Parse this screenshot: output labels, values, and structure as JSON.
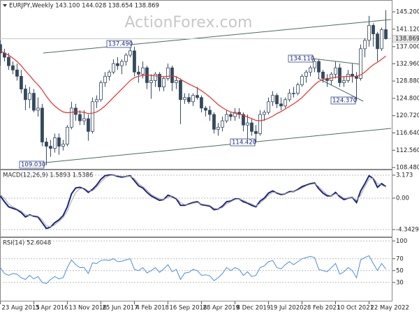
{
  "chart_data": [
    {
      "type": "candlestick",
      "title": "EURJPY,Weekly  143.100 144.028 138.654 138.869",
      "watermark": "ActionForex.com",
      "x": [
        "2015-08-23",
        "2015-09-20",
        "2015-10-18",
        "2015-11-15",
        "2015-12-13",
        "2016-01-10",
        "2016-02-07",
        "2016-03-06",
        "2016-04-03",
        "2016-05-01",
        "2016-05-29",
        "2016-06-26",
        "2016-07-24",
        "2016-08-21",
        "2016-09-18",
        "2016-10-16",
        "2016-11-13",
        "2016-12-11",
        "2017-01-08",
        "2017-02-05",
        "2017-03-05",
        "2017-04-02",
        "2017-04-30",
        "2017-05-28",
        "2017-06-25",
        "2017-07-23",
        "2017-08-20",
        "2017-09-17",
        "2017-10-15",
        "2017-11-12",
        "2017-12-10",
        "2018-01-07",
        "2018-02-04",
        "2018-03-04",
        "2018-04-01",
        "2018-04-29",
        "2018-05-27",
        "2018-06-24",
        "2018-07-22",
        "2018-08-19",
        "2018-09-16",
        "2018-10-14",
        "2018-11-11",
        "2018-12-09",
        "2019-01-06",
        "2019-02-03",
        "2019-03-03",
        "2019-03-31",
        "2019-04-28",
        "2019-05-26",
        "2019-06-23",
        "2019-07-21",
        "2019-08-18",
        "2019-09-15",
        "2019-10-13",
        "2019-11-10",
        "2019-12-08",
        "2020-01-05",
        "2020-02-02",
        "2020-03-01",
        "2020-03-29",
        "2020-04-26",
        "2020-05-24",
        "2020-06-21",
        "2020-07-19",
        "2020-08-16",
        "2020-09-13",
        "2020-10-11",
        "2020-11-08",
        "2020-12-06",
        "2021-01-03",
        "2021-01-31",
        "2021-02-28",
        "2021-03-28",
        "2021-04-25",
        "2021-05-23",
        "2021-06-20",
        "2021-07-18",
        "2021-08-15",
        "2021-09-12",
        "2021-10-10",
        "2021-11-07",
        "2021-12-05",
        "2022-01-02",
        "2022-01-30",
        "2022-02-27",
        "2022-03-27",
        "2022-04-24",
        "2022-05-22",
        "2022-06-19",
        "2022-07-17",
        "2022-08-14",
        "2022-09-11"
      ],
      "open": [
        137.5,
        135.5,
        134.5,
        132.5,
        131.5,
        130.0,
        127.0,
        124.5,
        126.0,
        122.0,
        122.5,
        114.5,
        113.5,
        113.0,
        115.5,
        113.5,
        114.0,
        118.0,
        122.5,
        121.0,
        119.5,
        120.0,
        117.0,
        124.0,
        124.5,
        128.5,
        130.0,
        131.0,
        133.0,
        132.5,
        133.5,
        135.0,
        136.0,
        131.0,
        130.5,
        132.0,
        128.5,
        129.0,
        130.5,
        127.5,
        129.5,
        132.0,
        128.5,
        129.0,
        124.5,
        125.0,
        124.0,
        125.5,
        125.0,
        122.5,
        122.0,
        121.0,
        117.5,
        118.0,
        119.5,
        121.0,
        120.5,
        121.5,
        121.0,
        118.5,
        119.0,
        117.0,
        116.5,
        121.0,
        121.5,
        124.0,
        125.5,
        123.5,
        123.0,
        124.5,
        126.0,
        126.0,
        128.0,
        130.0,
        131.0,
        132.0,
        133.5,
        131.0,
        129.5,
        129.0,
        130.5,
        132.0,
        128.5,
        129.0,
        130.5,
        130.0,
        129.5,
        136.5,
        138.5,
        142.0,
        140.0,
        136.5,
        141.0
      ],
      "high": [
        138.5,
        136.5,
        135.5,
        133.5,
        133.0,
        131.5,
        128.0,
        127.5,
        127.0,
        125.0,
        123.5,
        115.5,
        115.0,
        116.5,
        116.5,
        115.0,
        118.5,
        124.0,
        123.5,
        122.0,
        122.0,
        121.0,
        125.0,
        125.5,
        129.0,
        131.0,
        131.5,
        134.0,
        134.5,
        134.0,
        135.5,
        137.49,
        137.0,
        132.5,
        133.5,
        132.5,
        130.5,
        131.0,
        131.0,
        130.0,
        133.0,
        132.5,
        130.0,
        129.5,
        126.0,
        126.0,
        126.0,
        127.5,
        125.5,
        123.0,
        123.0,
        121.5,
        119.0,
        120.5,
        122.0,
        121.5,
        122.5,
        122.5,
        121.5,
        121.0,
        120.0,
        118.5,
        122.0,
        122.0,
        125.0,
        126.5,
        126.0,
        125.0,
        125.0,
        127.0,
        127.5,
        128.5,
        130.5,
        131.5,
        132.5,
        134.11,
        134.0,
        131.5,
        130.5,
        131.0,
        133.5,
        133.0,
        130.0,
        131.5,
        133.0,
        131.0,
        137.5,
        139.0,
        144.26,
        142.5,
        140.5,
        141.5,
        145.6
      ],
      "low": [
        132.5,
        133.5,
        131.5,
        130.5,
        129.0,
        126.0,
        122.0,
        122.5,
        121.5,
        120.5,
        113.5,
        109.03,
        111.0,
        112.0,
        111.5,
        112.5,
        113.5,
        117.5,
        119.5,
        118.5,
        118.5,
        114.8,
        116.5,
        122.5,
        124.0,
        127.5,
        129.0,
        130.5,
        131.5,
        130.5,
        132.5,
        134.5,
        130.0,
        128.5,
        129.5,
        127.0,
        124.7,
        127.5,
        126.5,
        126.5,
        129.0,
        126.5,
        127.0,
        118.7,
        123.5,
        123.5,
        123.0,
        124.5,
        121.5,
        120.5,
        119.5,
        116.5,
        116.0,
        117.0,
        119.0,
        119.5,
        119.5,
        120.0,
        117.0,
        114.42,
        116.0,
        114.5,
        116.0,
        119.5,
        121.0,
        123.0,
        122.5,
        122.0,
        122.5,
        124.0,
        125.0,
        125.5,
        127.5,
        128.5,
        130.0,
        131.0,
        129.5,
        128.5,
        127.5,
        128.0,
        129.5,
        127.5,
        127.5,
        128.5,
        128.5,
        124.37,
        129.0,
        134.5,
        137.0,
        137.0,
        133.5,
        136.0,
        138.654
      ],
      "close": [
        135.5,
        134.5,
        132.5,
        131.5,
        130.0,
        127.0,
        124.5,
        126.0,
        122.0,
        122.5,
        114.5,
        113.5,
        113.0,
        115.5,
        113.5,
        114.0,
        118.0,
        122.5,
        121.0,
        119.5,
        120.0,
        117.0,
        124.0,
        124.5,
        128.5,
        130.0,
        131.0,
        133.0,
        132.5,
        133.5,
        135.0,
        136.0,
        131.0,
        130.5,
        132.0,
        128.5,
        129.0,
        130.5,
        127.5,
        129.5,
        132.0,
        128.5,
        129.0,
        124.5,
        125.0,
        124.0,
        125.5,
        125.0,
        122.5,
        122.0,
        121.0,
        117.5,
        118.0,
        119.5,
        121.0,
        120.5,
        121.5,
        121.0,
        118.5,
        119.0,
        117.0,
        116.5,
        121.0,
        121.5,
        124.0,
        125.5,
        123.5,
        123.0,
        124.5,
        126.0,
        126.0,
        128.0,
        130.0,
        131.0,
        132.0,
        133.5,
        131.0,
        129.5,
        129.0,
        130.5,
        132.0,
        128.5,
        129.0,
        130.5,
        130.0,
        129.5,
        136.5,
        138.5,
        142.0,
        140.0,
        136.5,
        141.0,
        138.869
      ],
      "candle_color": "#34495e",
      "ma": {
        "color": "#e3302c",
        "values": [
          136.0,
          135.5,
          135.0,
          134.3,
          133.5,
          132.5,
          131.3,
          130.2,
          129.0,
          128.0,
          126.8,
          125.3,
          124.0,
          123.0,
          122.2,
          121.6,
          121.4,
          121.5,
          121.6,
          121.6,
          121.5,
          121.2,
          121.3,
          121.6,
          122.2,
          123.0,
          124.0,
          125.0,
          126.0,
          127.0,
          128.0,
          129.0,
          129.7,
          130.0,
          130.2,
          130.3,
          130.2,
          130.1,
          130.0,
          129.9,
          130.0,
          130.1,
          129.9,
          129.3,
          128.7,
          128.2,
          127.7,
          127.2,
          126.6,
          125.9,
          125.1,
          124.2,
          123.3,
          122.6,
          122.0,
          121.6,
          121.3,
          121.1,
          120.8,
          120.4,
          120.0,
          119.6,
          119.5,
          119.7,
          120.1,
          120.6,
          121.2,
          121.7,
          122.3,
          122.9,
          123.5,
          124.2,
          125.0,
          126.0,
          127.0,
          128.0,
          128.8,
          129.2,
          129.4,
          129.6,
          129.8,
          129.9,
          129.9,
          130.0,
          130.0,
          130.0,
          130.3,
          131.0,
          131.9,
          132.7,
          133.3,
          134.0,
          134.8
        ]
      },
      "annotations": [
        "137.490",
        "109.030",
        "114.420",
        "134.110",
        "124.370"
      ],
      "xlim": [
        "2015-08-21",
        "2022-10-16"
      ],
      "xticks": [
        {
          "value": "2015-08-23",
          "label": "23 Aug 2015"
        },
        {
          "value": "2016-04-03",
          "label": "3 Apr 2016"
        },
        {
          "value": "2016-11-13",
          "label": "13 Nov 2016"
        },
        {
          "value": "2017-06-25",
          "label": "25 Jun 2017"
        },
        {
          "value": "2018-02-04",
          "label": "4 Feb 2018"
        },
        {
          "value": "2018-09-16",
          "label": "16 Sep 2018"
        },
        {
          "value": "2019-04-28",
          "label": "28 Apr 2019"
        },
        {
          "value": "2019-12-08",
          "label": "8 Dec 2019"
        },
        {
          "value": "2020-07-19",
          "label": "19 Jul 2020"
        },
        {
          "value": "2021-02-28",
          "label": "28 Feb 2021"
        },
        {
          "value": "2021-10-10",
          "label": "10 Oct 2021"
        },
        {
          "value": "2022-05-22",
          "label": "22 May 2022"
        }
      ],
      "ylim": [
        108,
        148
      ],
      "yticks": [
        {
          "value": 145.2,
          "label": "145.200"
        },
        {
          "value": 141.12,
          "label": "141.120"
        },
        {
          "value": 137.0,
          "label": "137.000"
        },
        {
          "value": 132.96,
          "label": "132.960"
        },
        {
          "value": 128.88,
          "label": "128.880"
        },
        {
          "value": 124.8,
          "label": "124.800"
        },
        {
          "value": 120.72,
          "label": "120.720"
        },
        {
          "value": 116.64,
          "label": "116.640"
        },
        {
          "value": 112.56,
          "label": "112.560"
        },
        {
          "value": 108.48,
          "label": "108.480"
        }
      ]
    },
    {
      "type": "line",
      "title": "MACD(12,26,9) 1.5893 1.5386",
      "series": [
        {
          "color": "#1a237e",
          "values": [
            0.3,
            -0.5,
            -1.2,
            -1.4,
            -1.6,
            -2.0,
            -2.6,
            -2.3,
            -2.5,
            -2.6,
            -3.4,
            -4.2,
            -4.0,
            -3.4,
            -3.0,
            -2.4,
            -1.2,
            0.6,
            1.4,
            1.5,
            1.3,
            0.8,
            1.2,
            1.8,
            2.6,
            3.1,
            3.2,
            3.2,
            3.0,
            2.9,
            3.0,
            3.1,
            2.4,
            1.7,
            1.4,
            0.8,
            0.3,
            0.0,
            -0.3,
            -0.2,
            0.4,
            0.2,
            -0.1,
            -1.0,
            -1.0,
            -0.8,
            -0.6,
            -0.5,
            -0.9,
            -1.0,
            -1.1,
            -1.6,
            -1.5,
            -1.1,
            -0.5,
            -0.4,
            -0.1,
            -0.1,
            -0.5,
            -0.7,
            -1.0,
            -1.2,
            -0.4,
            0.0,
            0.7,
            1.0,
            0.7,
            0.5,
            0.6,
            0.9,
            0.9,
            1.2,
            1.6,
            1.8,
            2.0,
            2.1,
            1.3,
            0.7,
            0.3,
            0.3,
            0.8,
            0.2,
            -0.2,
            0.0,
            0.1,
            -0.6,
            1.0,
            2.0,
            3.1,
            2.7,
            1.5,
            2.0,
            1.5893
          ]
        },
        {
          "color": "#a8a8a8",
          "values": [
            0.5,
            0.0,
            -0.8,
            -1.2,
            -1.5,
            -1.8,
            -2.3,
            -2.4,
            -2.4,
            -2.5,
            -3.0,
            -3.8,
            -4.0,
            -3.7,
            -3.2,
            -2.7,
            -1.8,
            -0.4,
            0.8,
            1.3,
            1.4,
            1.0,
            1.0,
            1.5,
            2.2,
            2.8,
            3.1,
            3.2,
            3.1,
            3.0,
            3.0,
            3.0,
            2.7,
            2.0,
            1.6,
            1.1,
            0.5,
            0.2,
            -0.1,
            -0.2,
            0.1,
            0.3,
            0.0,
            -0.6,
            -0.9,
            -0.9,
            -0.7,
            -0.6,
            -0.8,
            -0.9,
            -1.0,
            -1.4,
            -1.5,
            -1.3,
            -0.8,
            -0.5,
            -0.2,
            -0.1,
            -0.3,
            -0.6,
            -0.8,
            -1.1,
            -0.7,
            -0.2,
            0.4,
            0.8,
            0.8,
            0.6,
            0.6,
            0.8,
            0.9,
            1.1,
            1.4,
            1.7,
            1.9,
            2.0,
            1.6,
            1.0,
            0.5,
            0.3,
            0.6,
            0.4,
            0.0,
            0.0,
            0.1,
            -0.3,
            0.4,
            1.6,
            2.6,
            2.8,
            2.0,
            1.8,
            1.5386
          ]
        }
      ],
      "ylim": [
        -5.4,
        3.85
      ],
      "yticks": [
        3.173,
        {
          "value": 0,
          "label": "0.00"
        },
        -4.3429
      ]
    },
    {
      "type": "line",
      "title": "RSI(14) 52.6048",
      "series": [
        {
          "color": "#4a90d9",
          "values": [
            55,
            45,
            42,
            45,
            44,
            38,
            35,
            42,
            36,
            40,
            30,
            28,
            35,
            40,
            36,
            38,
            55,
            68,
            60,
            55,
            55,
            45,
            63,
            62,
            67,
            68,
            67,
            70,
            65,
            66,
            68,
            70,
            52,
            50,
            55,
            46,
            50,
            55,
            47,
            53,
            60,
            48,
            52,
            35,
            46,
            47,
            52,
            50,
            42,
            43,
            41,
            33,
            38,
            45,
            55,
            50,
            55,
            52,
            42,
            48,
            40,
            42,
            55,
            58,
            65,
            67,
            55,
            53,
            60,
            65,
            60,
            65,
            70,
            72,
            74,
            72,
            52,
            50,
            48,
            55,
            62,
            44,
            48,
            55,
            50,
            38,
            68,
            72,
            75,
            62,
            50,
            62,
            52.6048
          ]
        }
      ],
      "ylim": [
        -2,
        105
      ],
      "yticks": [
        100,
        70,
        50,
        30
      ]
    }
  ]
}
